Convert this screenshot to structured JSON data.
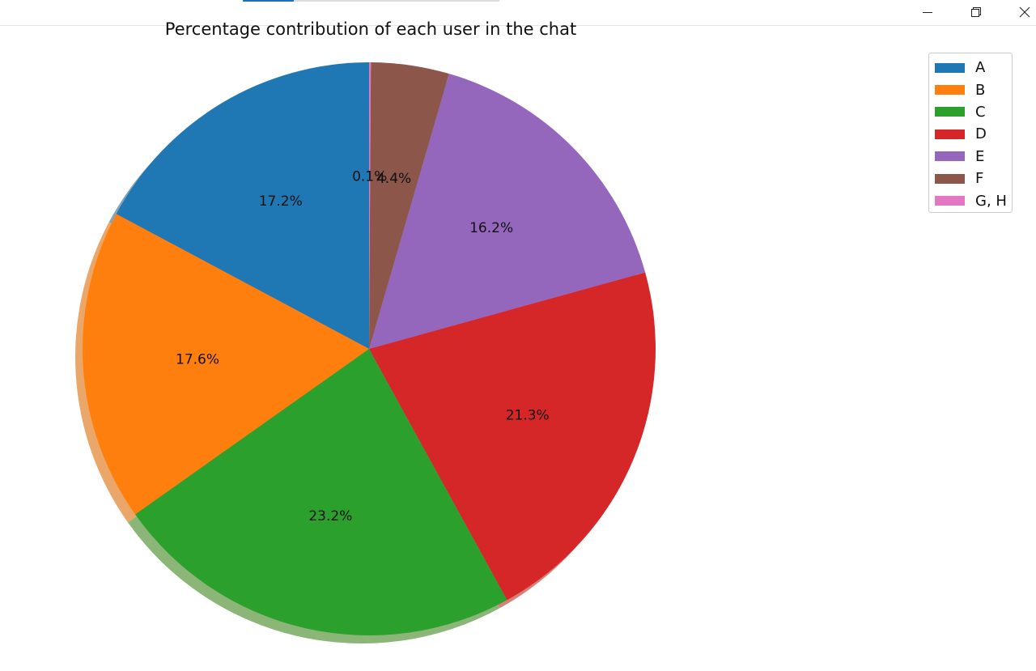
{
  "window": {
    "controls": {
      "minimize_icon": "minimize-icon",
      "restore_icon": "restore-icon",
      "close_icon": "close-icon"
    }
  },
  "chart_data": {
    "type": "pie",
    "title": "Percentage contribution of each user in the chat",
    "categories": [
      "A",
      "B",
      "C",
      "D",
      "E",
      "F",
      "G, H"
    ],
    "values": [
      17.2,
      17.6,
      23.2,
      21.3,
      16.2,
      4.4,
      0.1
    ],
    "value_labels": [
      "17.2%",
      "17.6%",
      "23.2%",
      "21.3%",
      "16.2%",
      "4.4%",
      "0.1%"
    ],
    "colors": [
      "#1f77b4",
      "#ff7f0e",
      "#2ca02c",
      "#d62728",
      "#9467bd",
      "#8c564b",
      "#e377c2"
    ],
    "start_angle_deg": 90,
    "direction": "counterclockwise",
    "shadow": true,
    "legend_position": "top-right"
  }
}
